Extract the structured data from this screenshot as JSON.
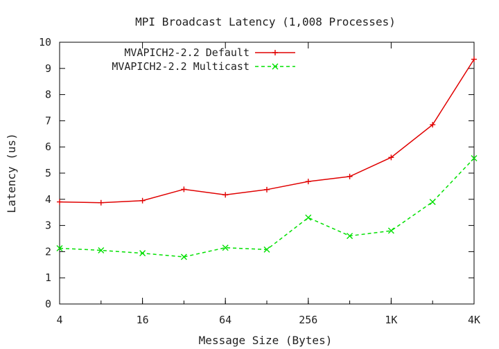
{
  "chart_data": {
    "type": "line",
    "title": "MPI Broadcast Latency (1,008 Processes)",
    "xlabel": "Message Size (Bytes)",
    "ylabel": "Latency (us)",
    "x_scale": "log2",
    "x": [
      4,
      8,
      16,
      32,
      64,
      128,
      256,
      512,
      1024,
      2048,
      4096
    ],
    "x_ticks": [
      {
        "value": 4,
        "label": "4"
      },
      {
        "value": 16,
        "label": "16"
      },
      {
        "value": 64,
        "label": "64"
      },
      {
        "value": 256,
        "label": "256"
      },
      {
        "value": 1024,
        "label": "1K"
      },
      {
        "value": 4096,
        "label": "4K"
      }
    ],
    "ylim": [
      0,
      10
    ],
    "y_ticks": [
      0,
      1,
      2,
      3,
      4,
      5,
      6,
      7,
      8,
      9,
      10
    ],
    "grid": false,
    "legend_position": "top-left",
    "series": [
      {
        "name": "MVAPICH2-2.2 Default",
        "color": "#e00000",
        "line_style": "solid",
        "marker": "plus",
        "values": [
          3.9,
          3.87,
          3.95,
          4.38,
          4.17,
          4.37,
          4.68,
          4.87,
          5.6,
          6.85,
          9.35
        ]
      },
      {
        "name": "MVAPICH2-2.2 Multicast",
        "color": "#00e000",
        "line_style": "dashed",
        "marker": "x",
        "values": [
          2.13,
          2.05,
          1.94,
          1.8,
          2.15,
          2.08,
          3.3,
          2.6,
          2.8,
          3.9,
          5.57
        ]
      }
    ]
  }
}
